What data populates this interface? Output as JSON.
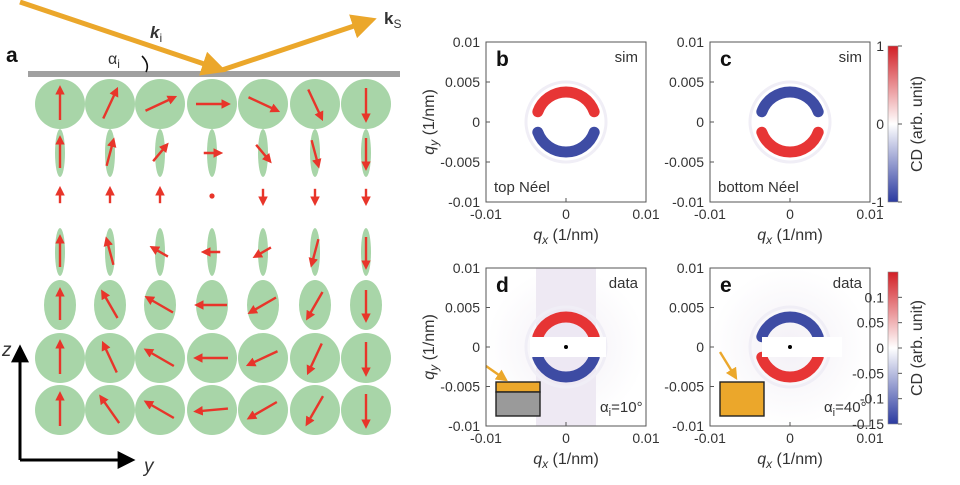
{
  "panel_a": {
    "label": "a",
    "ki": "k",
    "ki_sub": "i",
    "ks": "k",
    "ks_sub": "S",
    "alpha": "α",
    "alpha_sub": "i",
    "axis_z": "z",
    "axis_y": "y",
    "grid_columns": 7,
    "grid_rows": 7,
    "colors": {
      "disk": "#a8d5a8",
      "arrow": "#e8352a",
      "beam": "#eba72b",
      "surface": "#a0a0a0"
    }
  },
  "panels": [
    {
      "id": "b",
      "letter": "b",
      "tag": "sim",
      "caption": "top Néel",
      "pattern": "top"
    },
    {
      "id": "c",
      "letter": "c",
      "tag": "sim",
      "caption": "bottom Néel",
      "pattern": "bottom"
    },
    {
      "id": "d",
      "letter": "d",
      "tag": "data",
      "alpha": "α",
      "alpha_sub": "i",
      "alpha_value": "=10°",
      "pattern": "data-d"
    },
    {
      "id": "e",
      "letter": "e",
      "tag": "data",
      "alpha": "α",
      "alpha_sub": "i",
      "alpha_value": "=40°",
      "pattern": "data-e"
    }
  ],
  "axes": {
    "qx_var": "q",
    "qx_sub": "x",
    "qy_var": "q",
    "qy_sub": "y",
    "unit": " (1/nm)",
    "ticks": [
      "-0.01",
      "0",
      "0.01"
    ],
    "y_ticks": [
      "0.01",
      "0.005",
      "0",
      "-0.005",
      "-0.01"
    ]
  },
  "colorbars": [
    {
      "id": "top",
      "label": "CD (arb. unit)",
      "ticks": [
        "1",
        "0",
        "-1"
      ],
      "range": [
        -1,
        1
      ]
    },
    {
      "id": "bottom",
      "label": "CD (arb. unit)",
      "ticks": [
        "0.1",
        "0.05",
        "0",
        "-0.05",
        "-0.1",
        "-0.15"
      ],
      "range": [
        -0.15,
        0.15
      ]
    }
  ]
}
